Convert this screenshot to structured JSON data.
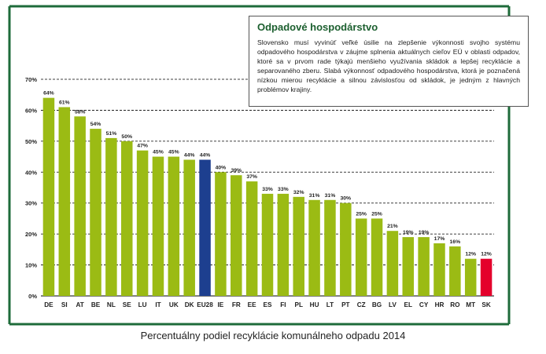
{
  "info_box": {
    "title": "Odpadové hospodárstvo",
    "text": "Slovensko musí vyvinúť veľké úsilie na zlepšenie výkonnosti svojho systému odpadového hospodárstva v záujme splnenia aktuálnych cieľov EÚ v oblasti odpadov, ktoré sa v prvom rade týkajú menšieho využívania skládok a lepšej recyklácie a separovaného zberu. Slabá výkonnosť odpadového hospodárstva, ktorá je poznačená nízkou mierou recyklácie a silnou závislosťou od skládok, je jedným z hlavných problémov krajiny."
  },
  "colors": {
    "bar": "#9bbb14",
    "eu_bar": "#1d3f8f",
    "sk_bar": "#e4002b",
    "frame": "#1e6b3a",
    "title": "#1c5f2f"
  },
  "chart_data": {
    "type": "bar",
    "title": "Percentuálny podiel recyklácie komunálneho odpadu 2014",
    "xlabel": "",
    "ylabel": "",
    "ylim": [
      0,
      70
    ],
    "yticks": [
      "0%",
      "10%",
      "20%",
      "30%",
      "40%",
      "50%",
      "60%",
      "70%"
    ],
    "ytick_values": [
      0,
      10,
      20,
      30,
      40,
      50,
      60,
      70
    ],
    "categories": [
      "DE",
      "SI",
      "AT",
      "BE",
      "NL",
      "SE",
      "LU",
      "IT",
      "UK",
      "DK",
      "EU28",
      "IE",
      "FR",
      "EE",
      "ES",
      "FI",
      "PL",
      "HU",
      "LT",
      "PT",
      "CZ",
      "BG",
      "LV",
      "EL",
      "CY",
      "HR",
      "RO",
      "MT",
      "SK"
    ],
    "values": [
      64,
      61,
      58,
      54,
      51,
      50,
      47,
      45,
      45,
      44,
      44,
      40,
      39,
      37,
      33,
      33,
      32,
      31,
      31,
      30,
      25,
      25,
      21,
      19,
      19,
      17,
      16,
      12,
      12
    ],
    "value_labels": [
      "64%",
      "61%",
      "58%",
      "54%",
      "51%",
      "50%",
      "47%",
      "45%",
      "45%",
      "44%",
      "44%",
      "40%",
      "39%",
      "37%",
      "33%",
      "33%",
      "32%",
      "31%",
      "31%",
      "30%",
      "25%",
      "25%",
      "21%",
      "19%",
      "19%",
      "17%",
      "16%",
      "12%",
      "12%"
    ],
    "highlight": {
      "EU28": "eu_bar",
      "SK": "sk_bar"
    }
  }
}
